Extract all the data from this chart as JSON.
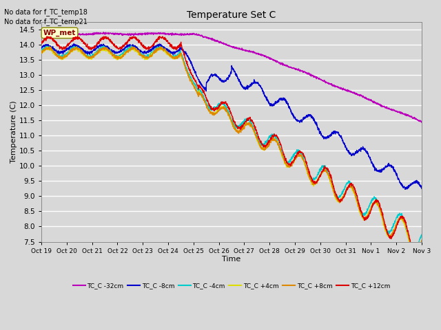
{
  "title": "Temperature Set C",
  "xlabel": "Time",
  "ylabel": "Temperature (C)",
  "ylim": [
    7.5,
    14.75
  ],
  "yticks": [
    7.5,
    8.0,
    8.5,
    9.0,
    9.5,
    10.0,
    10.5,
    11.0,
    11.5,
    12.0,
    12.5,
    13.0,
    13.5,
    14.0,
    14.5
  ],
  "xtick_labels": [
    "Oct 19",
    "Oct 20",
    "Oct 21",
    "Oct 22",
    "Oct 23",
    "Oct 24",
    "Oct 25",
    "Oct 26",
    "Oct 27",
    "Oct 28",
    "Oct 29",
    "Oct 30",
    "Oct 31",
    "Nov 1",
    "Nov 2",
    "Nov 3"
  ],
  "note_lines": [
    "No data for f_TC_temp18",
    "No data for f_TC_temp21"
  ],
  "wp_met_label": "WP_met",
  "bg_color": "#d8d8d8",
  "plot_bg_color": "#d8d8d8",
  "grid_color": "#ffffff",
  "series": [
    {
      "label": "TC_C -32cm",
      "color": "#bb00bb",
      "lw": 1.0
    },
    {
      "label": "TC_C -8cm",
      "color": "#0000cc",
      "lw": 1.0
    },
    {
      "label": "TC_C -4cm",
      "color": "#00cccc",
      "lw": 1.0
    },
    {
      "label": "TC_C +4cm",
      "color": "#dddd00",
      "lw": 1.0
    },
    {
      "label": "TC_C +8cm",
      "color": "#dd8800",
      "lw": 1.0
    },
    {
      "label": "TC_C +12cm",
      "color": "#dd0000",
      "lw": 1.0
    }
  ]
}
